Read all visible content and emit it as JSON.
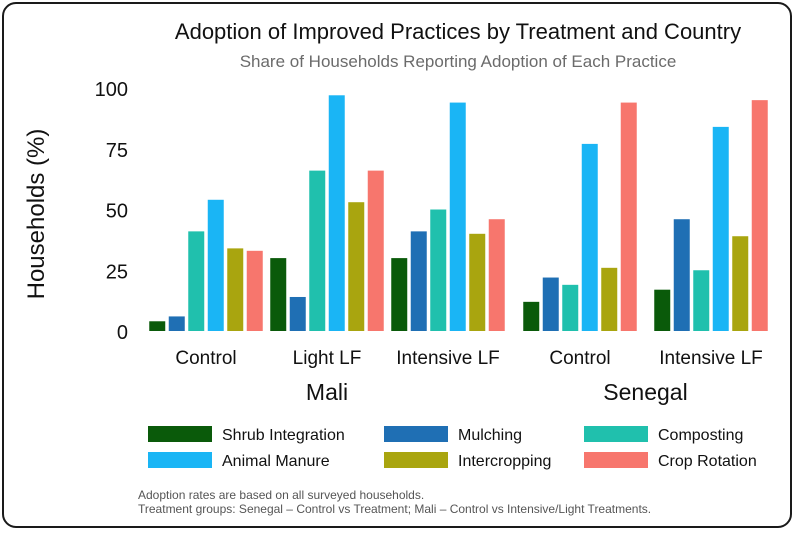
{
  "chart_data": {
    "type": "bar",
    "title": "Adoption of Improved Practices by Treatment and Country",
    "subtitle": "Share of Households Reporting Adoption of Each Practice",
    "ylabel": "Households (%)",
    "ylim": [
      0,
      100
    ],
    "yticks": [
      0,
      25,
      50,
      75,
      100
    ],
    "grid": false,
    "legend_position": "bottom",
    "countries": [
      "Mali",
      "Senegal"
    ],
    "groups": [
      {
        "country": "Mali",
        "label": "Control"
      },
      {
        "country": "Mali",
        "label": "Light LF"
      },
      {
        "country": "Mali",
        "label": "Intensive LF"
      },
      {
        "country": "Senegal",
        "label": "Control"
      },
      {
        "country": "Senegal",
        "label": "Intensive LF"
      }
    ],
    "series": [
      {
        "name": "Shrub Integration",
        "color": "#0a5a0a",
        "values": [
          4,
          30,
          30,
          12,
          17
        ]
      },
      {
        "name": "Mulching",
        "color": "#1f6fb4",
        "values": [
          6,
          14,
          41,
          22,
          46
        ]
      },
      {
        "name": "Composting",
        "color": "#20c0ad",
        "values": [
          41,
          66,
          50,
          19,
          25
        ]
      },
      {
        "name": "Animal Manure",
        "color": "#1ab5f5",
        "values": [
          54,
          97,
          94,
          77,
          84
        ]
      },
      {
        "name": "Intercropping",
        "color": "#a9a50f",
        "values": [
          34,
          53,
          40,
          26,
          39
        ]
      },
      {
        "name": "Crop Rotation",
        "color": "#f7766d",
        "values": [
          33,
          66,
          46,
          94,
          95
        ]
      }
    ]
  },
  "notes": [
    "Adoption rates are based on all surveyed households.",
    "Treatment groups: Senegal – Control vs Treatment; Mali – Control vs Intensive/Light Treatments."
  ]
}
